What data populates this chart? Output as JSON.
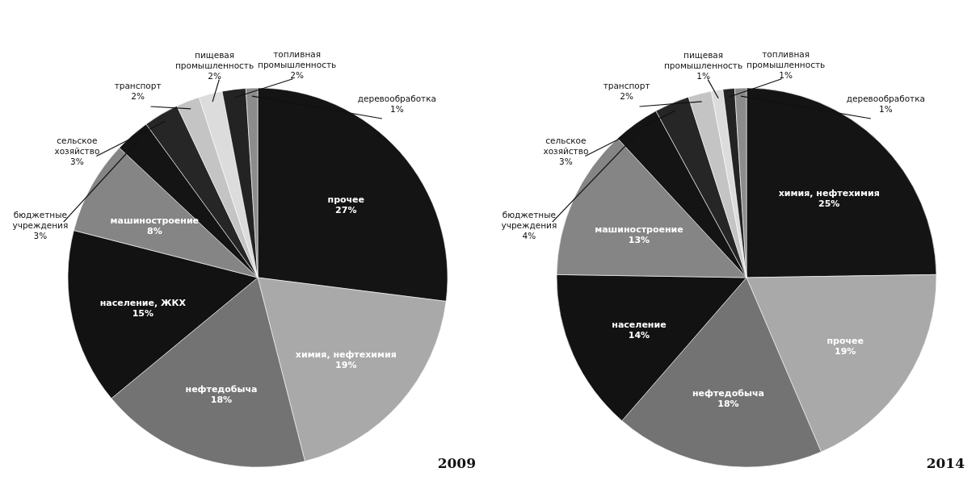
{
  "chart_data": [
    {
      "type": "pie",
      "title": "2009",
      "categories": [
        "прочее",
        "химия, нефтехимия",
        "нефтедобыча",
        "население, ЖКХ",
        "машиностроение",
        "бюджетные учреждения",
        "сельское хозяйство",
        "транспорт",
        "пищевая промышленность",
        "топливная промышленность",
        "деревообработка"
      ],
      "values": [
        27,
        19,
        18,
        15,
        8,
        3,
        3,
        2,
        2,
        2,
        1
      ],
      "value_labels": [
        "27%",
        "19%",
        "18%",
        "15%",
        "8%",
        "3%",
        "3%",
        "2%",
        "2%",
        "2%",
        "1%"
      ],
      "colors": [
        "#141414",
        "#a9a9a9",
        "#737373",
        "#121212",
        "#858585",
        "#141414",
        "#262626",
        "#c4c4c4",
        "#dcdcdc",
        "#232323",
        "#8c8c8c"
      ]
    },
    {
      "type": "pie",
      "title": "2014",
      "categories": [
        "химия, нефтехимия",
        "прочее",
        "нефтедобыча",
        "население",
        "машиностроение",
        "бюджетные учреждения",
        "сельское хозяйство",
        "транспорт",
        "пищевая промышленность",
        "топливная промышленность",
        "деревообработка"
      ],
      "values": [
        25,
        19,
        18,
        14,
        13,
        4,
        3,
        2,
        1,
        1,
        1
      ],
      "value_labels": [
        "25%",
        "19%",
        "18%",
        "14%",
        "13%",
        "4%",
        "3%",
        "2%",
        "1%",
        "1%",
        "1%"
      ],
      "colors": [
        "#141414",
        "#a9a9a9",
        "#737373",
        "#121212",
        "#858585",
        "#141414",
        "#262626",
        "#c4c4c4",
        "#dcdcdc",
        "#232323",
        "#8c8c8c"
      ]
    }
  ]
}
